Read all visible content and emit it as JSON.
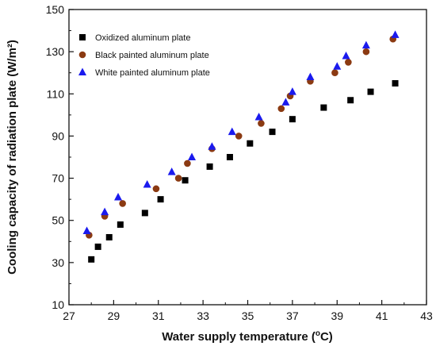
{
  "chart_data": {
    "type": "scatter",
    "xlabel": "Water supply temperature (℃)",
    "xlabel_parts": {
      "before": "Water supply temperature (",
      "degree": "o",
      "unit": "C)"
    },
    "ylabel": "Cooling capacity of radiation plate (W/m²)",
    "xlim": [
      27,
      43
    ],
    "ylim": [
      10,
      150
    ],
    "xticks": [
      27,
      29,
      31,
      33,
      35,
      37,
      39,
      41,
      43
    ],
    "yticks": [
      10,
      30,
      50,
      70,
      90,
      110,
      130,
      150
    ],
    "grid": false,
    "legend_position": "top-left",
    "series": [
      {
        "name": "Oxidized aluminum plate",
        "marker": "square",
        "color": "#000000",
        "x": [
          28.0,
          28.3,
          28.8,
          29.3,
          30.4,
          31.1,
          32.2,
          33.3,
          34.2,
          35.1,
          36.1,
          37.0,
          38.4,
          39.6,
          40.5,
          41.6
        ],
        "y": [
          31.5,
          37.5,
          42,
          48,
          53.5,
          60,
          69,
          75.5,
          80,
          86.5,
          92,
          98,
          103.5,
          107,
          111,
          115
        ]
      },
      {
        "name": "Black painted aluminum plate",
        "marker": "circle",
        "color": "#8B3A12",
        "x": [
          27.9,
          28.6,
          29.4,
          30.9,
          31.9,
          32.3,
          33.4,
          34.6,
          35.6,
          36.5,
          36.9,
          37.8,
          38.9,
          39.5,
          40.3,
          41.5
        ],
        "y": [
          43,
          52,
          58,
          65,
          70,
          77,
          84,
          90,
          96,
          103,
          109,
          116,
          120,
          125,
          130,
          136
        ]
      },
      {
        "name": "White painted aluminum plate",
        "marker": "triangle",
        "color": "#1a1aee",
        "x": [
          27.8,
          28.6,
          29.2,
          30.5,
          31.6,
          32.5,
          33.4,
          34.3,
          35.5,
          36.7,
          37.0,
          37.8,
          39.0,
          39.4,
          40.3,
          41.6
        ],
        "y": [
          45,
          54,
          61,
          67,
          73,
          80,
          85,
          92,
          99,
          106,
          111,
          118,
          123,
          128,
          133,
          138
        ]
      }
    ]
  }
}
